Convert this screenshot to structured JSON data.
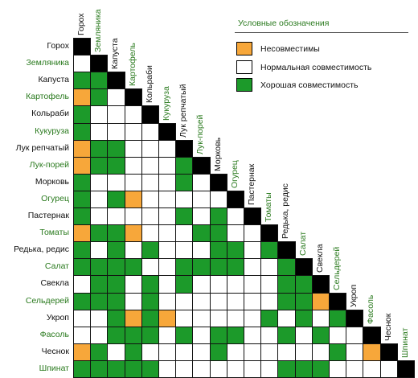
{
  "colors": {
    "incompatible": "#f7a73a",
    "normal": "#ffffff",
    "good": "#1c9a2a",
    "diagonal": "#000000",
    "grid": "#111111",
    "label_black": "#111111",
    "label_green": "#2a7a1e"
  },
  "legend": {
    "title": "Условные обозначения",
    "items": [
      {
        "key": "incompatible",
        "label": "Несовместимы"
      },
      {
        "key": "normal",
        "label": "Нормальная совместимость"
      },
      {
        "key": "good",
        "label": "Хорошая совместимость"
      }
    ]
  },
  "crops": [
    {
      "name": "Горох",
      "color": "black"
    },
    {
      "name": "Земляника",
      "color": "green"
    },
    {
      "name": "Капуста",
      "color": "black"
    },
    {
      "name": "Картофель",
      "color": "green"
    },
    {
      "name": "Кольраби",
      "color": "black"
    },
    {
      "name": "Кукуруза",
      "color": "green"
    },
    {
      "name": "Лук репчатый",
      "color": "black"
    },
    {
      "name": "Лук-порей",
      "color": "green"
    },
    {
      "name": "Морковь",
      "color": "black"
    },
    {
      "name": "Огурец",
      "color": "green"
    },
    {
      "name": "Пастернак",
      "color": "black"
    },
    {
      "name": "Томаты",
      "color": "green"
    },
    {
      "name": "Редька, редис",
      "color": "black"
    },
    {
      "name": "Салат",
      "color": "green"
    },
    {
      "name": "Свекла",
      "color": "black"
    },
    {
      "name": "Сельдерей",
      "color": "green"
    },
    {
      "name": "Укроп",
      "color": "black"
    },
    {
      "name": "Фасоль",
      "color": "green"
    },
    {
      "name": "Чеснок",
      "color": "black"
    },
    {
      "name": "Шпинат",
      "color": "green"
    }
  ],
  "matrix_legend": {
    "I": "incompatible",
    "N": "normal",
    "G": "good"
  },
  "matrix": [
    "",
    "N",
    "GG",
    "IGN",
    "GNNN",
    "GNNNN",
    "IGGNNN",
    "IGGNNNG",
    "GNNNNNGN",
    "GNGINNNNN",
    "GNNNNNGNGN",
    "IGGINNNGGNN",
    "GNGNGNNNGGNG",
    "GGGGNNGGGGNNG",
    "NGGNGNGNNNNNGG",
    "GGGNGNNNNNNNGGI",
    "NNGIGINNNNNGNGNG",
    "NNGGGNGNGGNNGNGNN",
    "IGNGNNNNGNNNNNNGNI",
    "GGGGGNNNNNNNGGGNNNN"
  ]
}
